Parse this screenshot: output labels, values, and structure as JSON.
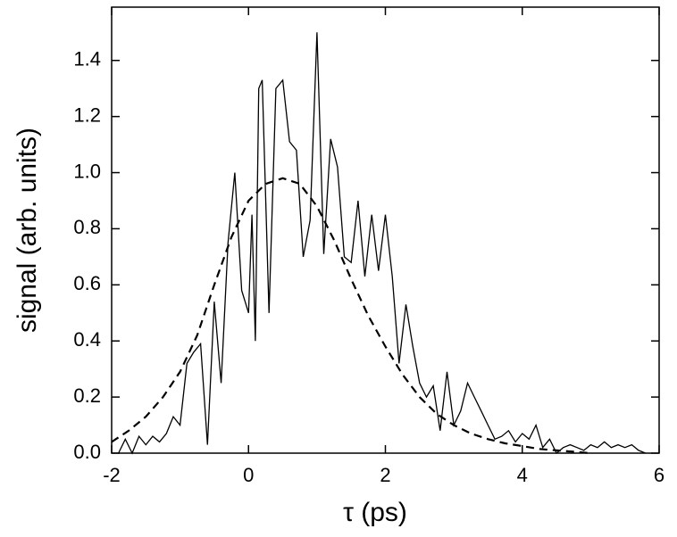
{
  "chart_data": {
    "type": "line",
    "xlabel": "τ (ps)",
    "ylabel": "signal (arb. units)",
    "xlim": [
      -2,
      6
    ],
    "xticks": [
      -2,
      0,
      2,
      4,
      6
    ],
    "ylim": [
      0,
      1.59
    ],
    "yticks": [
      {
        "value": 0,
        "label": "0.0"
      },
      {
        "value": 0.2,
        "label": "0.2"
      },
      {
        "value": 0.4,
        "label": "0.4"
      },
      {
        "value": 0.6,
        "label": "0.6"
      },
      {
        "value": 0.8,
        "label": "0.8"
      },
      {
        "value": 1.0,
        "label": "1.0"
      },
      {
        "value": 1.2,
        "label": "1.2"
      },
      {
        "value": 1.4,
        "label": "1.4"
      }
    ],
    "series": [
      {
        "color": "#000000",
        "dash": "none",
        "x": [
          -1.9,
          -1.8,
          -1.7,
          -1.6,
          -1.5,
          -1.4,
          -1.3,
          -1.2,
          -1.1,
          -1.0,
          -0.9,
          -0.8,
          -0.7,
          -0.6,
          -0.5,
          -0.4,
          -0.3,
          -0.2,
          -0.1,
          0.0,
          0.05,
          0.1,
          0.15,
          0.2,
          0.3,
          0.4,
          0.5,
          0.6,
          0.7,
          0.8,
          0.9,
          1.0,
          1.1,
          1.2,
          1.3,
          1.4,
          1.5,
          1.6,
          1.7,
          1.8,
          1.9,
          2.0,
          2.1,
          2.2,
          2.3,
          2.4,
          2.5,
          2.6,
          2.7,
          2.8,
          2.9,
          3.0,
          3.1,
          3.2,
          3.3,
          3.4,
          3.5,
          3.6,
          3.7,
          3.8,
          3.9,
          4.0,
          4.1,
          4.2,
          4.3,
          4.4,
          4.5,
          4.6,
          4.7,
          4.8,
          4.9,
          5.0,
          5.1,
          5.2,
          5.3,
          5.4,
          5.5,
          5.6,
          5.7,
          5.8
        ],
        "values": [
          0.0,
          0.05,
          0.0,
          0.06,
          0.03,
          0.06,
          0.04,
          0.07,
          0.13,
          0.1,
          0.32,
          0.36,
          0.39,
          0.03,
          0.54,
          0.25,
          0.75,
          1.0,
          0.58,
          0.5,
          0.85,
          0.4,
          1.3,
          1.33,
          0.5,
          1.3,
          1.33,
          1.11,
          1.08,
          0.7,
          0.83,
          1.5,
          0.71,
          1.12,
          1.02,
          0.7,
          0.68,
          0.9,
          0.63,
          0.85,
          0.65,
          0.85,
          0.63,
          0.32,
          0.53,
          0.38,
          0.25,
          0.2,
          0.24,
          0.08,
          0.29,
          0.1,
          0.15,
          0.25,
          0.2,
          0.15,
          0.1,
          0.05,
          0.06,
          0.08,
          0.04,
          0.07,
          0.05,
          0.1,
          0.02,
          0.05,
          0.0,
          0.02,
          0.03,
          0.02,
          0.01,
          0.03,
          0.02,
          0.04,
          0.02,
          0.03,
          0.02,
          0.03,
          0.01,
          0.0
        ]
      },
      {
        "color": "#000000",
        "dash": "9 6",
        "x": [
          -2.0,
          -1.75,
          -1.5,
          -1.25,
          -1.0,
          -0.75,
          -0.5,
          -0.25,
          0.0,
          0.25,
          0.5,
          0.75,
          1.0,
          1.25,
          1.5,
          1.75,
          2.0,
          2.25,
          2.5,
          2.75,
          3.0,
          3.25,
          3.5,
          3.75,
          4.0,
          4.25,
          4.5,
          4.75,
          5.0
        ],
        "values": [
          0.04,
          0.08,
          0.13,
          0.2,
          0.29,
          0.42,
          0.6,
          0.77,
          0.9,
          0.96,
          0.98,
          0.96,
          0.88,
          0.76,
          0.62,
          0.49,
          0.38,
          0.28,
          0.2,
          0.14,
          0.1,
          0.07,
          0.05,
          0.035,
          0.025,
          0.015,
          0.01,
          0.005,
          0.0
        ]
      }
    ]
  }
}
